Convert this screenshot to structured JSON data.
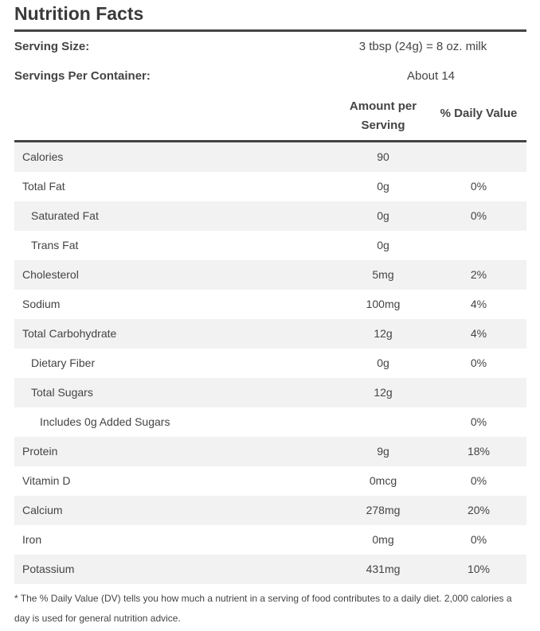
{
  "title": "Nutrition Facts",
  "serving_size": {
    "label": "Serving Size:",
    "value": "3 tbsp (24g) = 8 oz. milk"
  },
  "servings_per_container": {
    "label": "Servings Per Container:",
    "value": "About 14"
  },
  "table": {
    "header": {
      "amount": "Amount per Serving",
      "daily_value": "% Daily Value"
    },
    "rows": [
      [
        "Calories",
        "90",
        null
      ],
      [
        "Total Fat",
        "0g",
        "0%"
      ],
      [
        "Saturated Fat",
        "0g",
        "0%"
      ],
      [
        "Trans Fat",
        "0g",
        null
      ],
      [
        "Cholesterol",
        "5mg",
        "2%"
      ],
      [
        "Sodium",
        "100mg",
        "4%"
      ],
      [
        "Total Carbohydrate",
        "12g",
        "4%"
      ],
      [
        "Dietary Fiber",
        "0g",
        "0%"
      ],
      [
        "Total Sugars",
        "12g",
        null
      ],
      [
        "Includes 0g Added Sugars",
        null,
        "0%"
      ],
      [
        "Protein",
        "9g",
        "18%"
      ],
      [
        "Vitamin D",
        "0mcg",
        "0%"
      ],
      [
        "Calcium",
        "278mg",
        "20%"
      ],
      [
        "Iron",
        "0mg",
        "0%"
      ],
      [
        "Potassium",
        "431mg",
        "10%"
      ]
    ]
  },
  "footnote": "* The % Daily Value (DV) tells you how much a nutrient in a serving of food contributes to a daily diet. 2,000 calories a day is used for general nutrition advice."
}
